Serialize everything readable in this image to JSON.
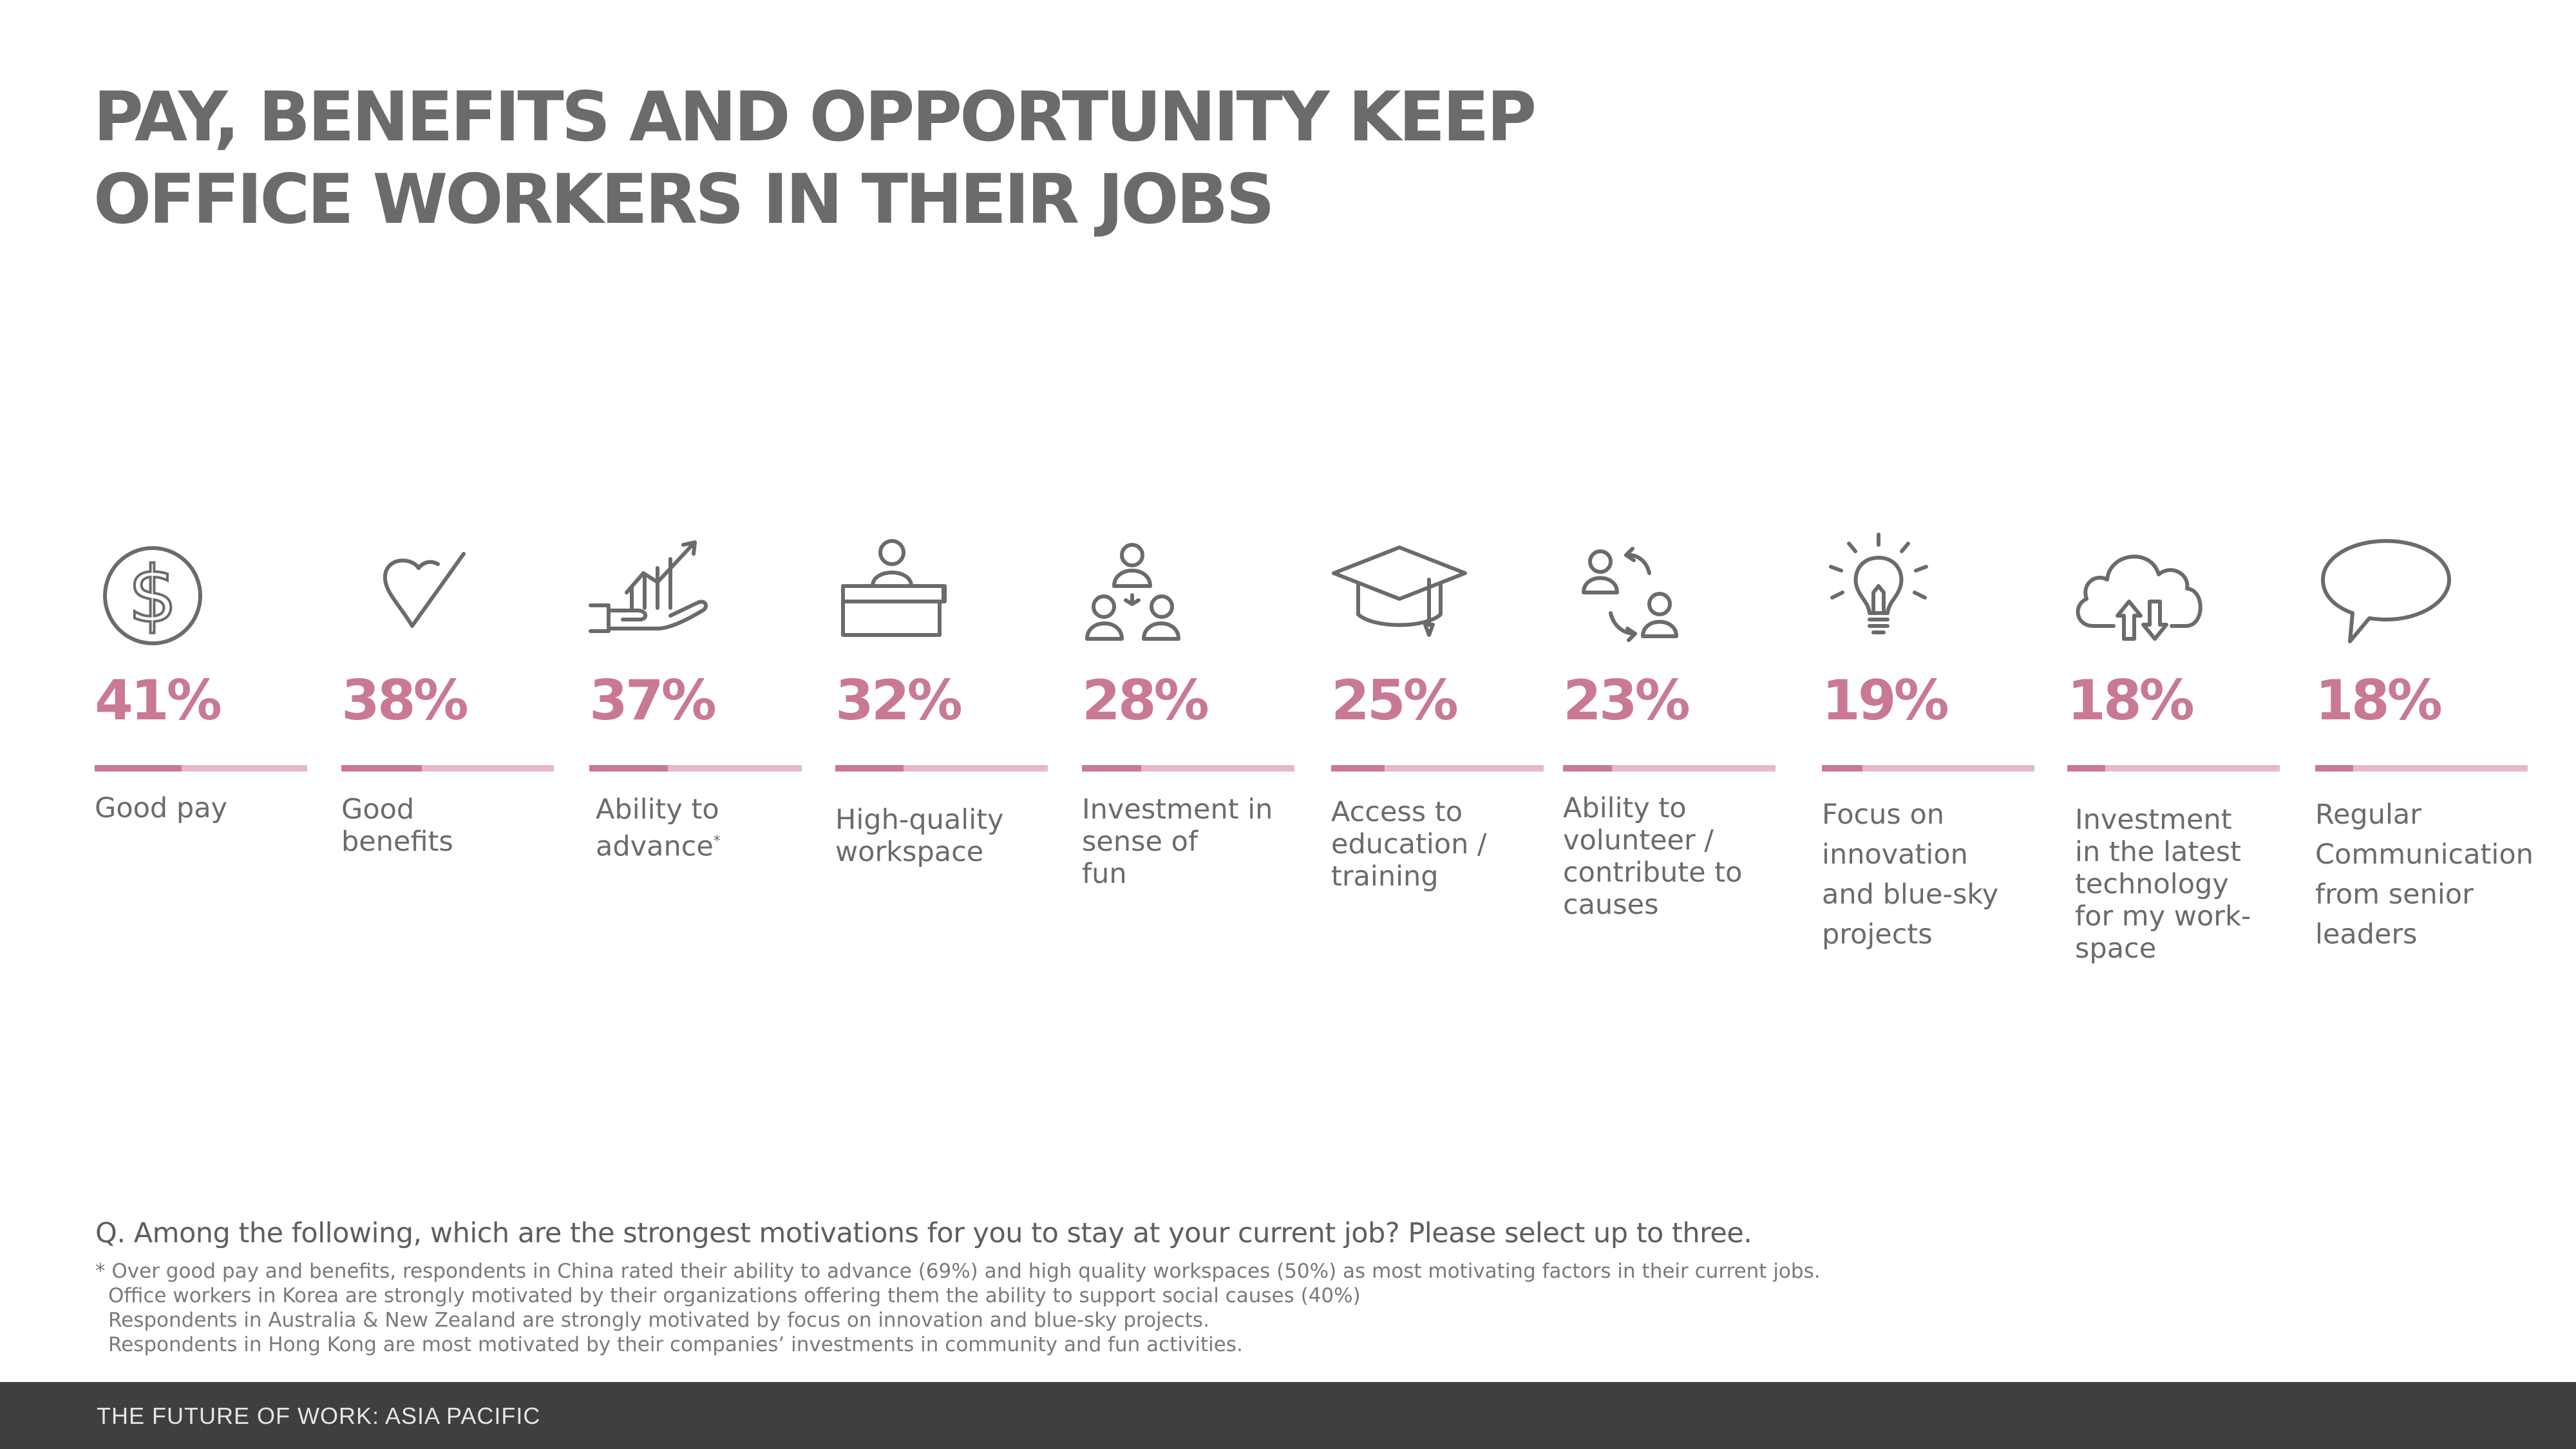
{
  "title_lines": [
    "PAY, BENEFITS AND OPPORTUNITY KEEP",
    "OFFICE WORKERS IN THEIR JOBS"
  ],
  "chart_data": {
    "type": "bar",
    "title": "PAY, BENEFITS AND OPPORTUNITY KEEP OFFICE WORKERS IN THEIR JOBS",
    "categories": [
      "Good pay",
      "Good benefits",
      "Ability to advance*",
      "High-quality workspace",
      "Investment in sense of fun",
      "Access to education / training",
      "Ability to volunteer / contribute to causes",
      "Focus on innovation and blue-sky projects",
      "Investment in the latest technology for my work-space",
      "Regular Communication from senior leaders"
    ],
    "values": [
      41,
      38,
      37,
      32,
      28,
      25,
      23,
      19,
      18,
      18
    ],
    "value_labels": [
      "41%",
      "38%",
      "37%",
      "32%",
      "28%",
      "25%",
      "23%",
      "19%",
      "18%",
      "18%"
    ],
    "unit": "%",
    "ylim": [
      0,
      100
    ],
    "grid": false,
    "legend": "none"
  },
  "items": [
    {
      "icon": "dollar-icon",
      "label": "Good pay"
    },
    {
      "icon": "heart-check-icon",
      "label": "Good\nbenefits"
    },
    {
      "icon": "hand-growth-chart-icon",
      "label": "Ability to\nadvance",
      "footnote_mark": "*"
    },
    {
      "icon": "podium-speaker-icon",
      "label": "High-quality\nworkspace"
    },
    {
      "icon": "group-people-icon",
      "label": "Investment in\nsense of\nfun"
    },
    {
      "icon": "graduation-cap-icon",
      "label": "Access to\neducation /\ntraining"
    },
    {
      "icon": "people-exchange-icon",
      "label": "Ability to\nvolunteer /\ncontribute to\ncauses"
    },
    {
      "icon": "lightbulb-icon",
      "label": "Focus on\ninnovation\nand blue-sky\nprojects"
    },
    {
      "icon": "cloud-transfer-icon",
      "label": "Investment\nin the latest\ntechnology\nfor my work-\nspace"
    },
    {
      "icon": "speech-bubble-icon",
      "label": "Regular\nCommunication\nfrom senior\nleaders"
    }
  ],
  "question": "Q. Among the following, which are the strongest motivations for you to stay at your current job? Please select up to three.",
  "notes": [
    "* Over good pay and benefits, respondents in China rated their ability to advance (69%) and high quality workspaces (50%) as most motivating factors in their current jobs.",
    "Office workers in Korea are strongly motivated by their organizations offering them the ability to support social causes (40%)",
    "Respondents in Australia & New Zealand are strongly motivated by focus on innovation and blue-sky projects.",
    "Respondents in Hong Kong are most motivated by their companies’ investments in community and fun activities."
  ],
  "footer": "THE FUTURE OF WORK: ASIA PACIFIC",
  "colors": {
    "accent": "#c97993",
    "accent_light": "#e8b8c8",
    "text": "#6b6b6b",
    "footer_bg": "#3f3f42"
  }
}
